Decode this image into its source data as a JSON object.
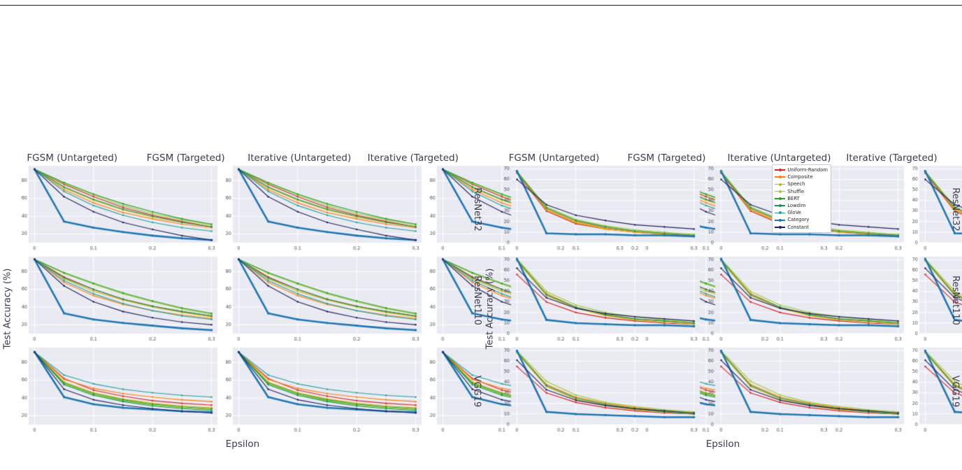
{
  "chart_data": {
    "type": "line",
    "x": [
      0,
      0.05,
      0.1,
      0.15,
      0.2,
      0.25,
      0.3
    ],
    "xlim": [
      -0.01,
      0.31
    ],
    "xticks": [
      0,
      0.1,
      0.2,
      0.3
    ],
    "xtick_labels": [
      "0",
      "0.1",
      "0.2",
      "0.3"
    ],
    "xlabel": "Epsilon",
    "ylabel": "Test Accuracy (%)",
    "col_titles": [
      "FGSM (Untargeted)",
      "FGSM (Targeted)",
      "Iterative (Untargeted)",
      "Iterative (Targeted)"
    ],
    "grid_style": {
      "plot_bg": "#e9eaf2",
      "gridline": "#ffffff",
      "tick_color": "#4a4a58",
      "title_color": "#3b3b4f"
    },
    "grids": [
      {
        "id": "left-figure",
        "ylim": [
          10,
          97
        ],
        "yticks": [
          20,
          40,
          60,
          80
        ],
        "legend": [
          {
            "label": "Uniform-Random",
            "color": "#d62728",
            "width": 1.1
          },
          {
            "label": "Composite",
            "color": "#ff7f0e",
            "width": 1.1
          },
          {
            "label": "Speech",
            "color": "#d4b106",
            "width": 1.1
          },
          {
            "label": "Shuffle",
            "color": "#9acd32",
            "width": 1.1
          },
          {
            "label": "BERT",
            "color": "#2ca02c",
            "width": 1.1
          },
          {
            "label": "Lowdim",
            "color": "#1a9850",
            "width": 1.1
          },
          {
            "label": "GloVe",
            "color": "#20a39e",
            "width": 1.1
          },
          {
            "label": "Category",
            "color": "#1f77b4",
            "width": 2.6
          },
          {
            "label": "Constant",
            "color": "#23235f",
            "width": 1.1
          }
        ],
        "rows": [
          {
            "label": "ResNet32",
            "series": [
              {
                "name": "Uniform-Random",
                "values": [
                  93,
                  76,
                  62,
                  50,
                  41,
                  34,
                  28
                ]
              },
              {
                "name": "Composite",
                "values": [
                  93,
                  70,
                  55,
                  44,
                  37,
                  31,
                  27
                ]
              },
              {
                "name": "Speech",
                "values": [
                  93,
                  72,
                  58,
                  47,
                  39,
                  33,
                  28
                ]
              },
              {
                "name": "Shuffle",
                "values": [
                  93,
                  77,
                  64,
                  52,
                  43,
                  36,
                  30
                ]
              },
              {
                "name": "BERT",
                "values": [
                  93,
                  78,
                  65,
                  54,
                  45,
                  37,
                  31
                ]
              },
              {
                "name": "Lowdim",
                "values": [
                  93,
                  73,
                  59,
                  48,
                  40,
                  33,
                  28
                ]
              },
              {
                "name": "GloVe",
                "values": [
                  93,
                  68,
                  52,
                  41,
                  33,
                  27,
                  23
                ]
              },
              {
                "name": "Category",
                "values": [
                  93,
                  34,
                  27,
                  22,
                  18,
                  15,
                  13
                ]
              },
              {
                "name": "Constant",
                "values": [
                  93,
                  62,
                  45,
                  33,
                  25,
                  18,
                  13
                ]
              }
            ]
          },
          {
            "label": "ResNet110",
            "series": [
              {
                "name": "Uniform-Random",
                "values": [
                  94,
                  74,
                  60,
                  49,
                  41,
                  35,
                  30
                ]
              },
              {
                "name": "Composite",
                "values": [
                  94,
                  68,
                  53,
                  43,
                  36,
                  31,
                  27
                ]
              },
              {
                "name": "Speech",
                "values": [
                  94,
                  72,
                  58,
                  48,
                  40,
                  34,
                  29
                ]
              },
              {
                "name": "Shuffle",
                "values": [
                  94,
                  78,
                  66,
                  55,
                  46,
                  38,
                  32
                ]
              },
              {
                "name": "BERT",
                "values": [
                  94,
                  79,
                  67,
                  56,
                  47,
                  39,
                  33
                ]
              },
              {
                "name": "Lowdim",
                "values": [
                  94,
                  73,
                  60,
                  49,
                  41,
                  35,
                  30
                ]
              },
              {
                "name": "GloVe",
                "values": [
                  94,
                  70,
                  55,
                  44,
                  36,
                  30,
                  26
                ]
              },
              {
                "name": "Category",
                "values": [
                  94,
                  33,
                  26,
                  22,
                  19,
                  16,
                  14
                ]
              },
              {
                "name": "Constant",
                "values": [
                  94,
                  64,
                  46,
                  35,
                  28,
                  23,
                  20
                ]
              }
            ]
          },
          {
            "label": "VGG19",
            "series": [
              {
                "name": "Uniform-Random",
                "values": [
                  92,
                  62,
                  49,
                  42,
                  37,
                  34,
                  32
                ]
              },
              {
                "name": "Composite",
                "values": [
                  92,
                  61,
                  51,
                  45,
                  41,
                  38,
                  36
                ]
              },
              {
                "name": "Speech",
                "values": [
                  92,
                  58,
                  46,
                  39,
                  34,
                  31,
                  29
                ]
              },
              {
                "name": "Shuffle",
                "values": [
                  92,
                  56,
                  44,
                  37,
                  32,
                  29,
                  27
                ]
              },
              {
                "name": "BERT",
                "values": [
                  92,
                  57,
                  45,
                  38,
                  33,
                  30,
                  28
                ]
              },
              {
                "name": "Lowdim",
                "values": [
                  92,
                  55,
                  43,
                  36,
                  31,
                  28,
                  26
                ]
              },
              {
                "name": "GloVe",
                "values": [
                  92,
                  66,
                  56,
                  50,
                  46,
                  43,
                  41
                ]
              },
              {
                "name": "Category",
                "values": [
                  92,
                  41,
                  33,
                  29,
                  27,
                  25,
                  24
                ]
              },
              {
                "name": "Constant",
                "values": [
                  92,
                  50,
                  38,
                  32,
                  28,
                  25,
                  23
                ]
              }
            ]
          }
        ]
      },
      {
        "id": "right-figure",
        "ylim": [
          0,
          73
        ],
        "yticks": [
          0,
          10,
          20,
          30,
          40,
          50,
          60,
          70
        ],
        "legend": [
          {
            "label": "Uniform-Random",
            "color": "#d62728",
            "width": 1.1
          },
          {
            "label": "Composite",
            "color": "#ff7f0e",
            "width": 1.1
          },
          {
            "label": "Speech",
            "color": "#d4b106",
            "width": 1.1
          },
          {
            "label": "Shuffle",
            "color": "#9acd32",
            "width": 1.1
          },
          {
            "label": "Lowdim",
            "color": "#1a9850",
            "width": 1.1
          },
          {
            "label": "Category",
            "color": "#1f77b4",
            "width": 2.6
          },
          {
            "label": "Constant",
            "color": "#23235f",
            "width": 1.1
          }
        ],
        "rows": [
          {
            "label": "ResNet32",
            "series": [
              {
                "name": "Uniform-Random",
                "values": [
                  66,
                  30,
                  18,
                  13,
                  10,
                  8,
                  7
                ]
              },
              {
                "name": "Composite",
                "values": [
                  67,
                  32,
                  20,
                  14,
                  11,
                  9,
                  7
                ]
              },
              {
                "name": "Speech",
                "values": [
                  67,
                  31,
                  19,
                  13,
                  10,
                  8,
                  6
                ]
              },
              {
                "name": "Shuffle",
                "values": [
                  68,
                  34,
                  22,
                  16,
                  12,
                  10,
                  8
                ]
              },
              {
                "name": "Lowdim",
                "values": [
                  67,
                  33,
                  21,
                  15,
                  11,
                  9,
                  7
                ]
              },
              {
                "name": "Category",
                "values": [
                  68,
                  9,
                  8,
                  8,
                  7,
                  7,
                  6
                ]
              },
              {
                "name": "Constant",
                "values": [
                  60,
                  36,
                  26,
                  21,
                  17,
                  15,
                  13
                ]
              }
            ]
          },
          {
            "label": "ResNet110",
            "series": [
              {
                "name": "Uniform-Random",
                "values": [
                  56,
                  30,
                  20,
                  15,
                  12,
                  10,
                  9
                ]
              },
              {
                "name": "Composite",
                "values": [
                  70,
                  38,
                  25,
                  18,
                  14,
                  12,
                  10
                ]
              },
              {
                "name": "Speech",
                "values": [
                  69,
                  36,
                  24,
                  17,
                  13,
                  11,
                  9
                ]
              },
              {
                "name": "Shuffle",
                "values": [
                  71,
                  40,
                  27,
                  20,
                  16,
                  13,
                  11
                ]
              },
              {
                "name": "Lowdim",
                "values": [
                  70,
                  37,
                  25,
                  18,
                  14,
                  12,
                  10
                ]
              },
              {
                "name": "Category",
                "values": [
                  71,
                  13,
                  10,
                  9,
                  8,
                  8,
                  7
                ]
              },
              {
                "name": "Constant",
                "values": [
                  62,
                  34,
                  24,
                  19,
                  16,
                  14,
                  12
                ]
              }
            ]
          },
          {
            "label": "VGG19",
            "series": [
              {
                "name": "Uniform-Random",
                "values": [
                  55,
                  30,
                  21,
                  16,
                  13,
                  11,
                  10
                ]
              },
              {
                "name": "Composite",
                "values": [
                  69,
                  38,
                  26,
                  20,
                  16,
                  13,
                  11
                ]
              },
              {
                "name": "Speech",
                "values": [
                  68,
                  36,
                  24,
                  18,
                  14,
                  12,
                  10
                ]
              },
              {
                "name": "Shuffle",
                "values": [
                  70,
                  41,
                  28,
                  21,
                  17,
                  14,
                  12
                ]
              },
              {
                "name": "Lowdim",
                "values": [
                  69,
                  37,
                  25,
                  19,
                  15,
                  12,
                  10
                ]
              },
              {
                "name": "Category",
                "values": [
                  70,
                  12,
                  10,
                  9,
                  8,
                  7,
                  7
                ]
              },
              {
                "name": "Constant",
                "values": [
                  61,
                  33,
                  23,
                  18,
                  15,
                  13,
                  11
                ]
              }
            ]
          }
        ]
      }
    ]
  }
}
